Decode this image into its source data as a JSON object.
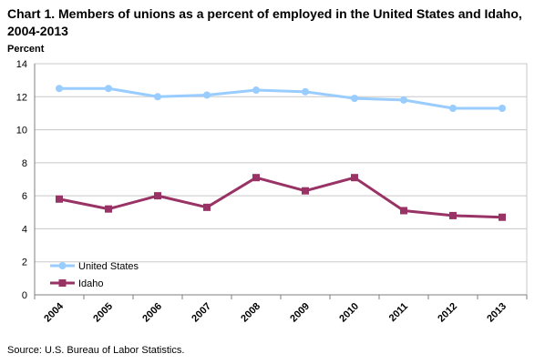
{
  "chart_data": {
    "type": "line",
    "title": "Chart 1. Members of unions as a percent of employed in the United States and Idaho, 2004-2013",
    "ylabel": "Percent",
    "xlabel": "",
    "categories": [
      "2004",
      "2005",
      "2006",
      "2007",
      "2008",
      "2009",
      "2010",
      "2011",
      "2012",
      "2013"
    ],
    "ylim": [
      0,
      14
    ],
    "yticks": [
      0,
      2,
      4,
      6,
      8,
      10,
      12,
      14
    ],
    "grid": true,
    "legend_position": "bottom-left",
    "series": [
      {
        "name": "United States",
        "color": "#99ccff",
        "marker": "circle",
        "values": [
          12.5,
          12.5,
          12.0,
          12.1,
          12.4,
          12.3,
          11.9,
          11.8,
          11.3,
          11.3
        ]
      },
      {
        "name": "Idaho",
        "color": "#993366",
        "marker": "square",
        "values": [
          5.8,
          5.2,
          6.0,
          5.3,
          7.1,
          6.3,
          7.1,
          5.1,
          4.8,
          4.7
        ]
      }
    ]
  },
  "source": "Source: U.S. Bureau of Labor Statistics."
}
